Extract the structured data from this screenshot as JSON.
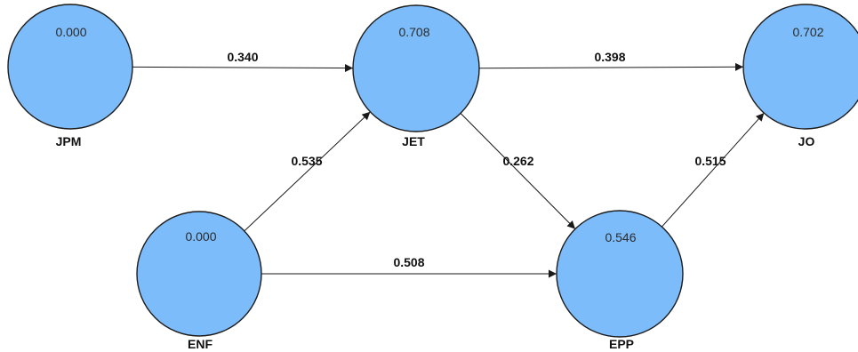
{
  "colors": {
    "node_fill": "#7dbcfa",
    "node_stroke": "#1c1c1c",
    "edge": "#1a1a1a"
  },
  "nodes": [
    {
      "id": "jpm",
      "label": "JPM",
      "value": "0.000"
    },
    {
      "id": "jet",
      "label": "JET",
      "value": "0.708"
    },
    {
      "id": "jo",
      "label": "JO",
      "value": "0.702"
    },
    {
      "id": "enf",
      "label": "ENF",
      "value": "0.000"
    },
    {
      "id": "epp",
      "label": "EPP",
      "value": "0.546"
    }
  ],
  "edges": [
    {
      "id": "jpm-jet",
      "from": "jpm",
      "to": "jet",
      "coefficient": "0.340"
    },
    {
      "id": "jet-jo",
      "from": "jet",
      "to": "jo",
      "coefficient": "0.398"
    },
    {
      "id": "enf-jet",
      "from": "enf",
      "to": "jet",
      "coefficient": "0.535"
    },
    {
      "id": "jet-epp",
      "from": "jet",
      "to": "epp",
      "coefficient": "0.262"
    },
    {
      "id": "epp-jo",
      "from": "epp",
      "to": "jo",
      "coefficient": "0.515"
    },
    {
      "id": "enf-epp",
      "from": "enf",
      "to": "epp",
      "coefficient": "0.508"
    }
  ]
}
